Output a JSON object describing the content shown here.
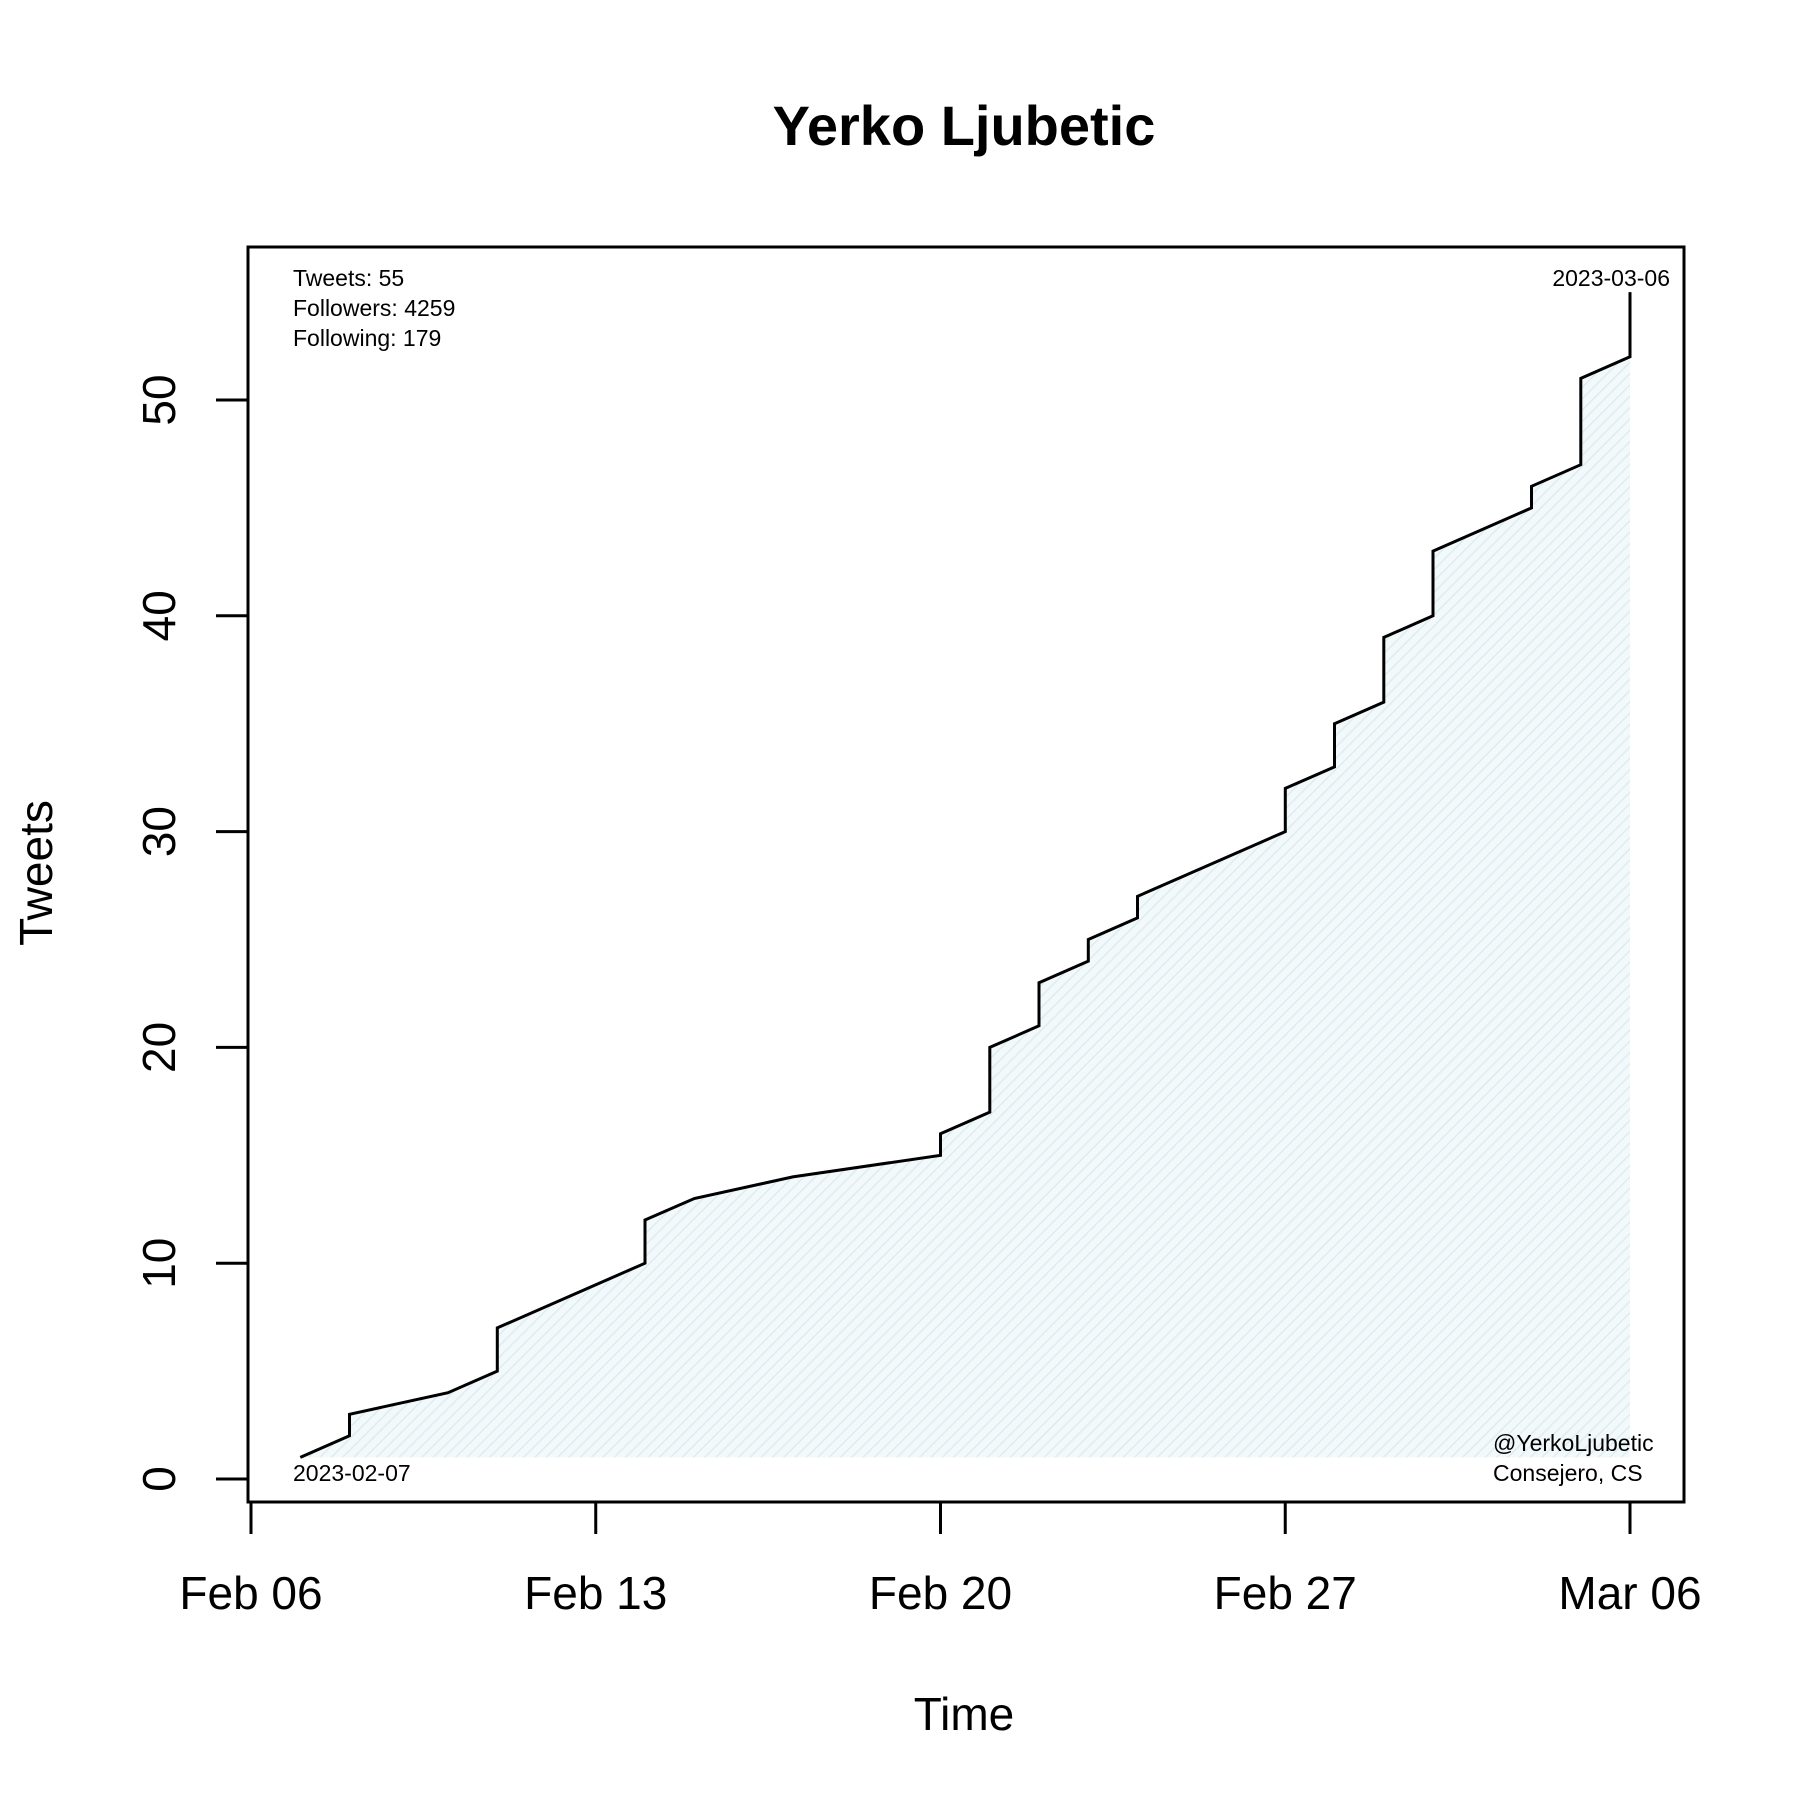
{
  "chart_data": {
    "type": "line",
    "title": "Yerko Ljubetic",
    "xlabel": "Time",
    "ylabel": "Tweets",
    "x_ticks": [
      {
        "date": "2023-02-06",
        "label": "Feb 06"
      },
      {
        "date": "2023-02-13",
        "label": "Feb 13"
      },
      {
        "date": "2023-02-20",
        "label": "Feb 20"
      },
      {
        "date": "2023-02-27",
        "label": "Feb 27"
      },
      {
        "date": "2023-03-06",
        "label": "Mar 06"
      }
    ],
    "y_ticks": [
      0,
      10,
      20,
      30,
      40,
      50
    ],
    "xlim": [
      "2023-02-05",
      "2023-03-07"
    ],
    "ylim": [
      0,
      57
    ],
    "grid": false,
    "fill_color": "#e3f1f5",
    "line_color": "#000000",
    "series": [
      {
        "points": [
          {
            "x": "2023-02-07 00:00",
            "y": 1
          },
          {
            "x": "2023-02-08 00:00",
            "y": 2
          },
          {
            "x": "2023-02-08 00:00",
            "y": 3
          },
          {
            "x": "2023-02-10 00:00",
            "y": 4
          },
          {
            "x": "2023-02-11 00:00",
            "y": 5
          },
          {
            "x": "2023-02-11 00:00",
            "y": 7
          },
          {
            "x": "2023-02-14 00:00",
            "y": 10
          },
          {
            "x": "2023-02-14 00:00",
            "y": 12
          },
          {
            "x": "2023-02-15 00:00",
            "y": 13
          },
          {
            "x": "2023-02-17 00:00",
            "y": 14
          },
          {
            "x": "2023-02-20 00:00",
            "y": 15
          },
          {
            "x": "2023-02-20 00:00",
            "y": 16
          },
          {
            "x": "2023-02-21 00:00",
            "y": 17
          },
          {
            "x": "2023-02-21 00:00",
            "y": 20
          },
          {
            "x": "2023-02-22 00:00",
            "y": 21
          },
          {
            "x": "2023-02-22 00:00",
            "y": 23
          },
          {
            "x": "2023-02-23 00:00",
            "y": 24
          },
          {
            "x": "2023-02-23 00:00",
            "y": 25
          },
          {
            "x": "2023-02-24 00:00",
            "y": 26
          },
          {
            "x": "2023-02-24 00:00",
            "y": 27
          },
          {
            "x": "2023-02-27 00:00",
            "y": 30
          },
          {
            "x": "2023-02-27 00:00",
            "y": 32
          },
          {
            "x": "2023-02-28 00:00",
            "y": 33
          },
          {
            "x": "2023-02-28 00:00",
            "y": 35
          },
          {
            "x": "2023-03-01 00:00",
            "y": 36
          },
          {
            "x": "2023-03-01 00:00",
            "y": 39
          },
          {
            "x": "2023-03-02 00:00",
            "y": 40
          },
          {
            "x": "2023-03-02 00:00",
            "y": 43
          },
          {
            "x": "2023-03-04 00:00",
            "y": 45
          },
          {
            "x": "2023-03-04 00:00",
            "y": 46
          },
          {
            "x": "2023-03-05 00:00",
            "y": 47
          },
          {
            "x": "2023-03-05 00:00",
            "y": 51
          },
          {
            "x": "2023-03-06 00:00",
            "y": 52
          },
          {
            "x": "2023-03-06 00:00",
            "y": 55
          }
        ]
      }
    ],
    "annotations": {
      "stats": [
        "Tweets: 55",
        "Followers: 4259",
        "Following: 179"
      ],
      "end_date": "2023-03-06",
      "start_date": "2023-02-07",
      "footer": [
        "@YerkoLjubetic",
        "Consejero, CS"
      ]
    }
  }
}
